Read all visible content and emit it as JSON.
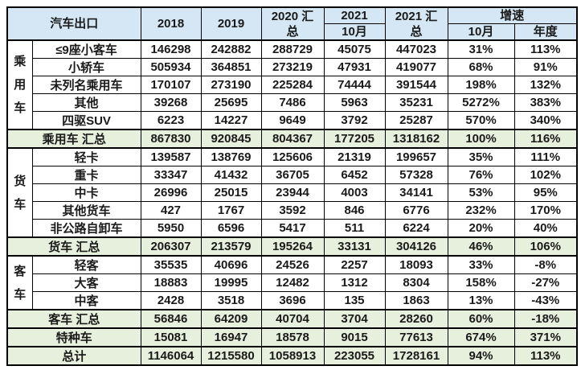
{
  "colors": {
    "header_bg": "#d5e7f4",
    "summary_bg": "#e7f0dd",
    "border": "#000000",
    "text": "#1a1a1a",
    "page_bg": "#ffffff"
  },
  "header": {
    "title": "汽车出口",
    "y2018": "2018",
    "y2019": "2019",
    "y2020_total_line1": "2020 汇",
    "y2020_total_line2": "总",
    "y2021": "2021",
    "y2021_oct": "10月",
    "y2021_total_line1": "2021 汇",
    "y2021_total_line2": "总",
    "growth": "增速",
    "growth_oct": "10月",
    "growth_annual": "年度"
  },
  "chart_data": {
    "type": "table",
    "title": "汽车出口",
    "columns": [
      "汽车出口",
      "2018",
      "2019",
      "2020 汇总",
      "2021 10月",
      "2021 汇总",
      "增速 10月",
      "增速 年度"
    ],
    "groups": [
      {
        "label": "乘用车",
        "start": 0,
        "span": 5
      },
      {
        "label": "货车",
        "start": 6,
        "span": 5
      },
      {
        "label": "客车",
        "start": 12,
        "span": 3
      }
    ],
    "rows": [
      {
        "type": "data",
        "label": "≤9座小客车",
        "values": [
          "146298",
          "242882",
          "288729",
          "45075",
          "447023",
          "31%",
          "113%"
        ]
      },
      {
        "type": "data",
        "label": "小轿车",
        "values": [
          "505934",
          "364851",
          "273219",
          "47931",
          "419077",
          "68%",
          "91%"
        ]
      },
      {
        "type": "data",
        "label": "未列名乘用车",
        "values": [
          "170107",
          "273190",
          "225284",
          "74444",
          "391544",
          "198%",
          "132%"
        ]
      },
      {
        "type": "data",
        "label": "其他",
        "values": [
          "39268",
          "25695",
          "7486",
          "5963",
          "35231",
          "5272%",
          "383%"
        ]
      },
      {
        "type": "data",
        "label": "四驱SUV",
        "values": [
          "6223",
          "14227",
          "9649",
          "3792",
          "25287",
          "570%",
          "340%"
        ]
      },
      {
        "type": "summary",
        "label": "乘用车 汇总",
        "values": [
          "867830",
          "920845",
          "804367",
          "177205",
          "1318162",
          "100%",
          "116%"
        ]
      },
      {
        "type": "data",
        "label": "轻卡",
        "values": [
          "139587",
          "138769",
          "125606",
          "21319",
          "199657",
          "35%",
          "111%"
        ]
      },
      {
        "type": "data",
        "label": "重卡",
        "values": [
          "33347",
          "41432",
          "36705",
          "6452",
          "57328",
          "76%",
          "102%"
        ]
      },
      {
        "type": "data",
        "label": "中卡",
        "values": [
          "26996",
          "25015",
          "23944",
          "4003",
          "34141",
          "53%",
          "95%"
        ]
      },
      {
        "type": "data",
        "label": "其他货车",
        "values": [
          "427",
          "1767",
          "3592",
          "846",
          "6776",
          "232%",
          "170%"
        ]
      },
      {
        "type": "data",
        "label": "非公路自卸车",
        "values": [
          "5950",
          "6596",
          "5417",
          "511",
          "6224",
          "20%",
          "40%"
        ]
      },
      {
        "type": "summary",
        "label": "货车 汇总",
        "values": [
          "206307",
          "213579",
          "195264",
          "33131",
          "304126",
          "46%",
          "106%"
        ]
      },
      {
        "type": "data",
        "label": "轻客",
        "values": [
          "35535",
          "40696",
          "24526",
          "2257",
          "18093",
          "33%",
          "-8%"
        ]
      },
      {
        "type": "data",
        "label": "大客",
        "values": [
          "18883",
          "19995",
          "12482",
          "1312",
          "8304",
          "158%",
          "-27%"
        ]
      },
      {
        "type": "data",
        "label": "中客",
        "values": [
          "2428",
          "3518",
          "3696",
          "135",
          "1863",
          "13%",
          "-43%"
        ]
      },
      {
        "type": "summary",
        "label": "客车 汇总",
        "values": [
          "56846",
          "64209",
          "40704",
          "3704",
          "28260",
          "60%",
          "-18%"
        ]
      },
      {
        "type": "summary",
        "label": "特种车",
        "values": [
          "15081",
          "16947",
          "18578",
          "9015",
          "77613",
          "674%",
          "371%"
        ]
      },
      {
        "type": "summary",
        "label": "总计",
        "values": [
          "1146064",
          "1215580",
          "1058913",
          "223055",
          "1728161",
          "94%",
          "113%"
        ]
      }
    ]
  }
}
